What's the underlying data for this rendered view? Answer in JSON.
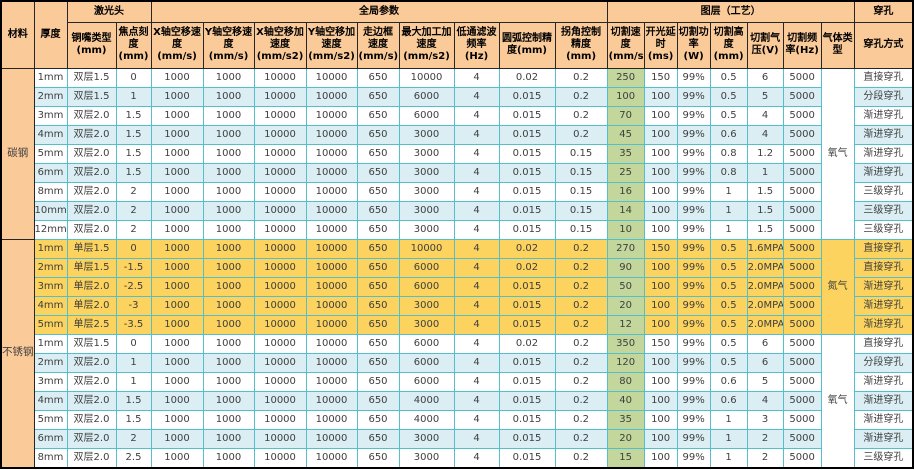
{
  "header": {
    "groups": {
      "material": "材料",
      "thickness": "厚度",
      "laser_head": "激光头",
      "global_params": "全局参数",
      "layer_process": "图层（工艺）",
      "piercing": "穿孔"
    },
    "columns": [
      "铜嘴类型(mm)",
      "焦点刻度(mm)",
      "X轴空移速度(mm/s)",
      "Y轴空移速度(mm/s)",
      "X轴空移加速度(mm/s2)",
      "Y轴空移加速度(mm/s2)",
      "走边框速度(mm/s)",
      "最大加工加速度(mm/s2)",
      "低通滤波频率(Hz)",
      "圆弧控制精度(mm)",
      "拐角控制精度(mm)",
      "切割速度(mm/s)",
      "开光延时(ms)",
      "切割功率(W)",
      "切割高度(mm)",
      "切割气压(V)",
      "切割频率(Hz)",
      "气体类型",
      "穿孔方式"
    ]
  },
  "colors": {
    "header_bg": "#FBCA99",
    "alt_row_blue": "#DAEEF3",
    "nitrogen_row_yellow": "#FBD35E",
    "cut_speed_green": "#C3D69B",
    "grid_teal": "#54BFCB"
  },
  "materials": [
    {
      "label": "碳钢",
      "groups": [
        {
          "gas": "氧气",
          "style": "alt",
          "rows": [
            {
              "cells": [
                "1mm",
                "双层1.5",
                "0",
                "1000",
                "1000",
                "10000",
                "10000",
                "650",
                "10000",
                "4",
                "0.02",
                "0.2",
                "250",
                "150",
                "99%",
                "0.5",
                "6",
                "5000",
                "直接穿孔"
              ]
            },
            {
              "cells": [
                "2mm",
                "双层1.5",
                "1",
                "1000",
                "1000",
                "10000",
                "10000",
                "650",
                "6000",
                "4",
                "0.015",
                "0.2",
                "100",
                "100",
                "99%",
                "0.5",
                "5",
                "5000",
                "分段穿孔"
              ]
            },
            {
              "cells": [
                "3mm",
                "双层2.0",
                "1.5",
                "1000",
                "1000",
                "10000",
                "10000",
                "650",
                "6000",
                "4",
                "0.015",
                "0.2",
                "70",
                "100",
                "99%",
                "0.5",
                "4",
                "5000",
                "渐进穿孔"
              ]
            },
            {
              "cells": [
                "4mm",
                "双层2.0",
                "1.5",
                "1000",
                "1000",
                "10000",
                "10000",
                "650",
                "3000",
                "4",
                "0.015",
                "0.2",
                "45",
                "100",
                "99%",
                "0.6",
                "4",
                "5000",
                "渐进穿孔"
              ]
            },
            {
              "cells": [
                "5mm",
                "双层2.0",
                "1.5",
                "1000",
                "1000",
                "10000",
                "10000",
                "650",
                "3000",
                "4",
                "0.015",
                "0.15",
                "35",
                "100",
                "99%",
                "0.8",
                "1.2",
                "5000",
                "渐进穿孔"
              ]
            },
            {
              "cells": [
                "6mm",
                "双层2.0",
                "1.5",
                "1000",
                "1000",
                "10000",
                "10000",
                "650",
                "3000",
                "4",
                "0.015",
                "0.15",
                "25",
                "100",
                "99%",
                "0.8",
                "1",
                "5000",
                "渐进穿孔"
              ]
            },
            {
              "cells": [
                "8mm",
                "双层2.0",
                "2",
                "1000",
                "1000",
                "10000",
                "10000",
                "650",
                "3000",
                "4",
                "0.015",
                "0.15",
                "16",
                "100",
                "99%",
                "1",
                "1.5",
                "5000",
                "三级穿孔"
              ]
            },
            {
              "cells": [
                "10mm",
                "双层2.0",
                "2",
                "1000",
                "1000",
                "10000",
                "10000",
                "650",
                "3000",
                "4",
                "0.015",
                "0.15",
                "14",
                "100",
                "99%",
                "1",
                "1.5",
                "5000",
                "三级穿孔"
              ]
            },
            {
              "cells": [
                "12mm",
                "双层2.0",
                "2",
                "1000",
                "1000",
                "10000",
                "10000",
                "650",
                "3000",
                "4",
                "0.015",
                "0.15",
                "10",
                "100",
                "99%",
                "1",
                "1.5",
                "5000",
                "三级穿孔"
              ]
            }
          ]
        }
      ]
    },
    {
      "label": "不锈钢",
      "groups": [
        {
          "gas": "氮气",
          "style": "yellow",
          "rows": [
            {
              "cells": [
                "1mm",
                "单层1.5",
                "0",
                "1000",
                "1000",
                "10000",
                "10000",
                "650",
                "10000",
                "4",
                "0.02",
                "0.2",
                "270",
                "150",
                "99%",
                "0.5",
                "1.6MPA",
                "5000",
                "直接穿孔"
              ]
            },
            {
              "cells": [
                "2mm",
                "单层1.5",
                "-1.5",
                "1000",
                "1000",
                "10000",
                "10000",
                "650",
                "6000",
                "4",
                "0.02",
                "0.2",
                "90",
                "100",
                "99%",
                "0.5",
                "2.0MPA",
                "5000",
                "直接穿孔"
              ]
            },
            {
              "cells": [
                "3mm",
                "单层2.0",
                "-2.5",
                "1000",
                "1000",
                "10000",
                "10000",
                "650",
                "6000",
                "4",
                "0.015",
                "0.2",
                "50",
                "100",
                "99%",
                "0.5",
                "2.0MPA",
                "5000",
                "渐进穿孔"
              ]
            },
            {
              "cells": [
                "4mm",
                "单层2.0",
                "-3",
                "1000",
                "1000",
                "10000",
                "10000",
                "650",
                "3000",
                "4",
                "0.015",
                "0.2",
                "20",
                "100",
                "99%",
                "0.5",
                "2.0MPA",
                "5000",
                "渐进穿孔"
              ]
            },
            {
              "cells": [
                "5mm",
                "单层2.5",
                "-3.5",
                "1000",
                "1000",
                "10000",
                "10000",
                "650",
                "3000",
                "4",
                "0.015",
                "0.2",
                "12",
                "100",
                "99%",
                "0.5",
                "2.0MPA",
                "5000",
                "渐进穿孔"
              ]
            }
          ]
        },
        {
          "gas": "氧气",
          "style": "alt",
          "rows": [
            {
              "cells": [
                "1mm",
                "双层1.5",
                "0",
                "1000",
                "1000",
                "10000",
                "10000",
                "650",
                "6000",
                "4",
                "0.02",
                "0.2",
                "350",
                "150",
                "99%",
                "0.5",
                "6",
                "5000",
                "直接穿孔"
              ]
            },
            {
              "cells": [
                "2mm",
                "双层2.0",
                "1",
                "1000",
                "1000",
                "10000",
                "10000",
                "650",
                "6000",
                "4",
                "0.015",
                "0.2",
                "120",
                "100",
                "99%",
                "0.5",
                "6",
                "5000",
                "分段穿孔"
              ]
            },
            {
              "cells": [
                "3mm",
                "双层2.0",
                "1",
                "1000",
                "1000",
                "10000",
                "10000",
                "650",
                "6000",
                "4",
                "0.015",
                "0.2",
                "80",
                "100",
                "99%",
                "0.6",
                "5",
                "5000",
                "渐进穿孔"
              ]
            },
            {
              "cells": [
                "4mm",
                "双层2.0",
                "1.5",
                "1000",
                "1000",
                "10000",
                "10000",
                "650",
                "4000",
                "4",
                "0.015",
                "0.2",
                "40",
                "100",
                "99%",
                "0.6",
                "4",
                "5000",
                "渐进穿孔"
              ]
            },
            {
              "cells": [
                "5mm",
                "双层2.0",
                "1.5",
                "1000",
                "1000",
                "10000",
                "10000",
                "650",
                "4000",
                "4",
                "0.015",
                "0.2",
                "35",
                "100",
                "99%",
                "1",
                "3",
                "5000",
                "渐进穿孔"
              ]
            },
            {
              "cells": [
                "6mm",
                "双层2.0",
                "2",
                "1000",
                "1000",
                "10000",
                "10000",
                "650",
                "3000",
                "4",
                "0.015",
                "0.2",
                "20",
                "100",
                "99%",
                "1",
                "2",
                "5000",
                "渐进穿孔"
              ]
            },
            {
              "cells": [
                "8mm",
                "双层2.0",
                "2.5",
                "1000",
                "1000",
                "10000",
                "10000",
                "650",
                "3000",
                "4",
                "0.015",
                "0.2",
                "15",
                "100",
                "99%",
                "1",
                "2",
                "5000",
                "三级穿孔"
              ]
            }
          ]
        }
      ]
    }
  ]
}
